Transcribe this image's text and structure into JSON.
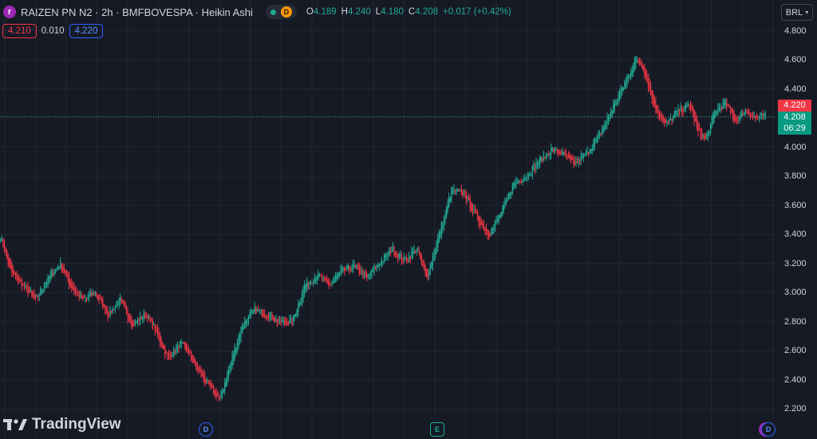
{
  "header": {
    "logo_letter": "r",
    "title": "RAIZEN PN N2 · 2h · BMFBOVESPA · Heikin Ashi",
    "delay_badge": "D",
    "ohlc": [
      {
        "label": "O",
        "value": "4.189"
      },
      {
        "label": "H",
        "value": "4.240"
      },
      {
        "label": "L",
        "value": "4.180"
      },
      {
        "label": "C",
        "value": "4.208"
      }
    ],
    "change": "+0.017 (+0.42%)"
  },
  "trade": {
    "sell_price": "4.210",
    "spread": "0.010",
    "buy_price": "4.220"
  },
  "currency_button": "BRL",
  "price_axis": {
    "ticks": [
      "4.800",
      "4.600",
      "4.400",
      "4.000",
      "3.800",
      "3.600",
      "3.400",
      "3.200",
      "3.000",
      "2.800",
      "2.600",
      "2.400",
      "2.200"
    ],
    "last_price_tag": "4.220",
    "current_price": "4.208",
    "countdown": "06:29"
  },
  "watermark": {
    "text": "TradingView"
  },
  "events": [
    {
      "type": "dividend",
      "letter": "D"
    },
    {
      "type": "earnings",
      "letter": "E"
    },
    {
      "type": "dividend",
      "letter": "D"
    }
  ],
  "colors": {
    "background": "#161a25",
    "up_candle": "#22ab94",
    "down_candle": "#f23645",
    "grid": "#232632",
    "brand_purple": "#9c27b0"
  },
  "chart_data": {
    "type": "candlestick",
    "style": "Heikin Ashi",
    "symbol": "RAIZEN PN N2",
    "interval": "2h",
    "exchange": "BMFBOVESPA",
    "ylim": [
      2.15,
      4.87
    ],
    "grid": true,
    "anchors": [
      [
        0,
        3.38
      ],
      [
        8,
        3.15
      ],
      [
        18,
        3.05
      ],
      [
        28,
        2.95
      ],
      [
        38,
        3.1
      ],
      [
        48,
        3.2
      ],
      [
        56,
        3.05
      ],
      [
        66,
        2.95
      ],
      [
        76,
        3.0
      ],
      [
        86,
        2.85
      ],
      [
        96,
        2.95
      ],
      [
        106,
        2.78
      ],
      [
        116,
        2.85
      ],
      [
        124,
        2.75
      ],
      [
        134,
        2.55
      ],
      [
        144,
        2.65
      ],
      [
        150,
        2.6
      ],
      [
        160,
        2.45
      ],
      [
        170,
        2.33
      ],
      [
        176,
        2.27
      ],
      [
        184,
        2.5
      ],
      [
        194,
        2.78
      ],
      [
        204,
        2.88
      ],
      [
        214,
        2.85
      ],
      [
        224,
        2.8
      ],
      [
        234,
        2.8
      ],
      [
        244,
        3.05
      ],
      [
        254,
        3.12
      ],
      [
        264,
        3.05
      ],
      [
        274,
        3.15
      ],
      [
        284,
        3.18
      ],
      [
        294,
        3.1
      ],
      [
        304,
        3.2
      ],
      [
        314,
        3.3
      ],
      [
        324,
        3.22
      ],
      [
        334,
        3.3
      ],
      [
        342,
        3.1
      ],
      [
        352,
        3.4
      ],
      [
        362,
        3.7
      ],
      [
        372,
        3.68
      ],
      [
        382,
        3.52
      ],
      [
        392,
        3.4
      ],
      [
        402,
        3.55
      ],
      [
        412,
        3.75
      ],
      [
        422,
        3.8
      ],
      [
        432,
        3.9
      ],
      [
        442,
        3.98
      ],
      [
        452,
        3.95
      ],
      [
        460,
        3.88
      ],
      [
        470,
        3.95
      ],
      [
        482,
        4.1
      ],
      [
        492,
        4.28
      ],
      [
        502,
        4.45
      ],
      [
        510,
        4.6
      ],
      [
        516,
        4.55
      ],
      [
        524,
        4.3
      ],
      [
        534,
        4.15
      ],
      [
        544,
        4.25
      ],
      [
        554,
        4.28
      ],
      [
        560,
        4.1
      ],
      [
        566,
        4.05
      ],
      [
        574,
        4.25
      ],
      [
        582,
        4.3
      ],
      [
        590,
        4.18
      ],
      [
        598,
        4.25
      ],
      [
        606,
        4.2
      ],
      [
        614,
        4.21
      ]
    ]
  }
}
